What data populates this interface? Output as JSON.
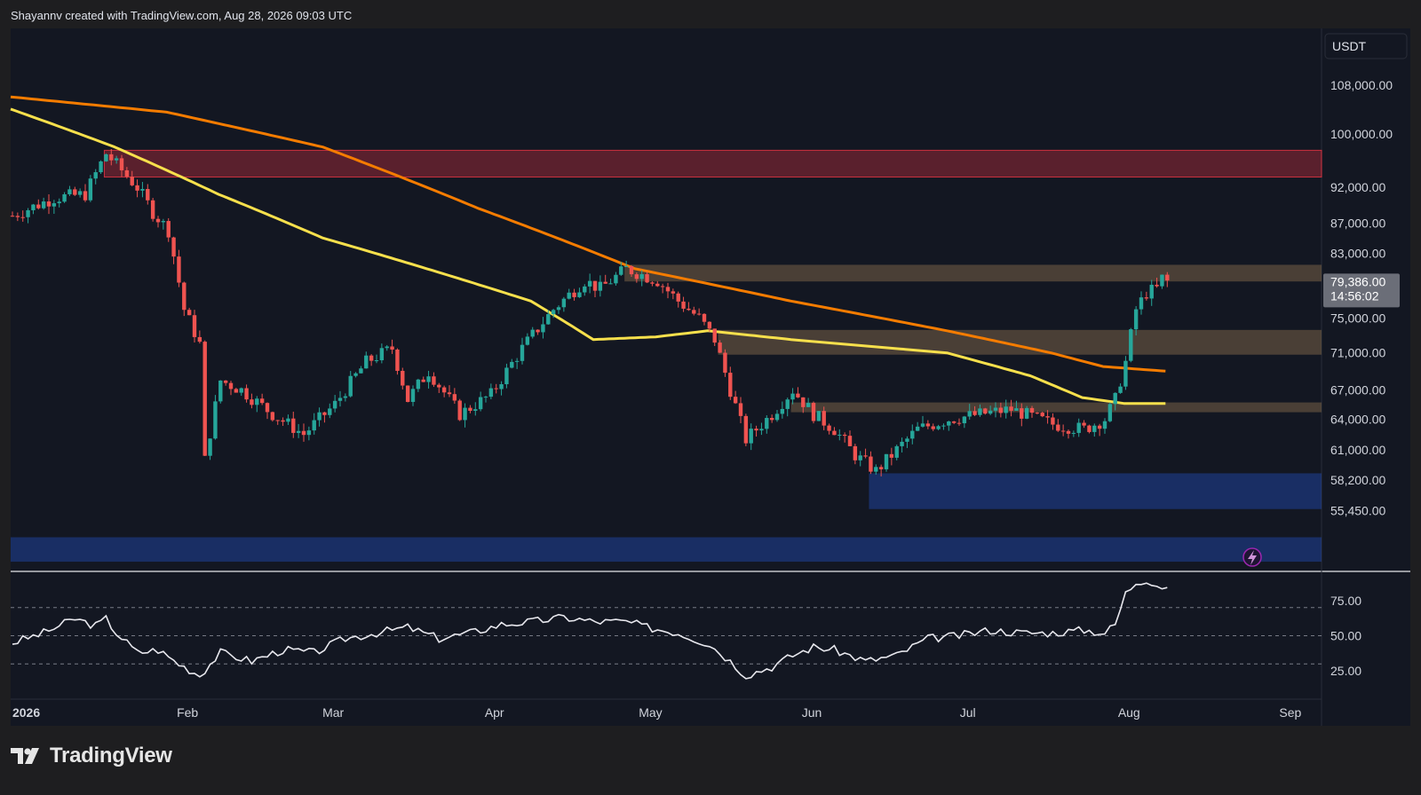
{
  "header": {
    "credit": "Shayannv created with TradingView.com, Aug 28, 2026 09:03 UTC"
  },
  "footer": {
    "brand": "TradingView"
  },
  "colors": {
    "bg": "#1e1e20",
    "pane": "#131722",
    "up": "#26a69a",
    "down": "#ef5350",
    "ma_orange": "#f57c00",
    "ma_yellow": "#f7e04c",
    "rsi": "#e8e8ee",
    "supply_red": "#f23645",
    "zone_tan": "#8d7150",
    "demand_blue": "#2962ff"
  },
  "chart_data": [
    {
      "type": "candlestick",
      "currency": "USDT",
      "y_ticks": [
        "108,000.00",
        "100,000.00",
        "92,000.00",
        "87,000.00",
        "83,000.00",
        "75,000.00",
        "71,000.00",
        "67,000.00",
        "64,000.00",
        "61,000.00",
        "58,200.00",
        "55,450.00"
      ],
      "y_tick_values": [
        108000,
        100000,
        92000,
        87000,
        83000,
        75000,
        71000,
        67000,
        64000,
        61000,
        58200,
        55450
      ],
      "x_ticks": [
        "2026",
        "Feb",
        "Mar",
        "Apr",
        "May",
        "Jun",
        "Jul",
        "Aug",
        "Sep"
      ],
      "last_price": "79,386.00",
      "countdown": "14:56:02",
      "price_path_start": "2025-12-29",
      "price_path": [
        [
          0,
          88000
        ],
        [
          8,
          90500
        ],
        [
          14,
          91000
        ],
        [
          18,
          97000
        ],
        [
          21,
          94500
        ],
        [
          24,
          92000
        ],
        [
          27,
          88500
        ],
        [
          30,
          86000
        ],
        [
          33,
          76000
        ],
        [
          36,
          72000
        ],
        [
          37,
          60000
        ],
        [
          40,
          68000
        ],
        [
          44,
          67000
        ],
        [
          50,
          64500
        ],
        [
          56,
          62500
        ],
        [
          62,
          65500
        ],
        [
          68,
          70000
        ],
        [
          73,
          71500
        ],
        [
          76,
          66000
        ],
        [
          80,
          69000
        ],
        [
          86,
          64500
        ],
        [
          92,
          66500
        ],
        [
          98,
          71500
        ],
        [
          104,
          76000
        ],
        [
          110,
          79500
        ],
        [
          113,
          78500
        ],
        [
          118,
          81000
        ],
        [
          124,
          79500
        ],
        [
          128,
          77000
        ],
        [
          132,
          75000
        ],
        [
          135,
          72500
        ],
        [
          138,
          67000
        ],
        [
          141,
          62000
        ],
        [
          146,
          64500
        ],
        [
          150,
          67000
        ],
        [
          154,
          64500
        ],
        [
          158,
          63000
        ],
        [
          162,
          60500
        ],
        [
          166,
          59000
        ],
        [
          170,
          61000
        ],
        [
          174,
          63000
        ],
        [
          180,
          64000
        ],
        [
          186,
          64500
        ],
        [
          192,
          65000
        ],
        [
          200,
          63500
        ],
        [
          206,
          63000
        ],
        [
          210,
          64000
        ],
        [
          212,
          66000
        ],
        [
          214,
          70000
        ],
        [
          216,
          76000
        ],
        [
          218,
          78000
        ],
        [
          220,
          78500
        ],
        [
          221,
          79800
        ],
        [
          222,
          79386
        ]
      ],
      "moving_averages": [
        {
          "color": "orange",
          "values": [
            [
              0,
              106000
            ],
            [
              30,
              103500
            ],
            [
              60,
              98000
            ],
            [
              90,
              89000
            ],
            [
              120,
              81000
            ],
            [
              150,
              77000
            ],
            [
              180,
              73500
            ],
            [
              200,
              71000
            ],
            [
              210,
              69500
            ],
            [
              222,
              69000
            ]
          ]
        },
        {
          "color": "yellow",
          "values": [
            [
              0,
              104000
            ],
            [
              20,
              98000
            ],
            [
              40,
              91000
            ],
            [
              60,
              85000
            ],
            [
              80,
              81000
            ],
            [
              100,
              77000
            ],
            [
              112,
              72500
            ],
            [
              124,
              72800
            ],
            [
              134,
              73500
            ],
            [
              150,
              72500
            ],
            [
              180,
              71000
            ],
            [
              196,
              68500
            ],
            [
              206,
              66200
            ],
            [
              214,
              65600
            ],
            [
              222,
              65600
            ]
          ]
        }
      ],
      "zones": [
        {
          "kind": "supply",
          "start_day": 18,
          "high": 97500,
          "low": 93500
        },
        {
          "kind": "resistance",
          "start_day": 118,
          "high": 81500,
          "low": 79400
        },
        {
          "kind": "resistance",
          "start_day": 136,
          "high": 73600,
          "low": 70800
        },
        {
          "kind": "resistance",
          "start_day": 150,
          "high": 65700,
          "low": 64700
        },
        {
          "kind": "demand",
          "start_day": 165,
          "high": 58800,
          "low": 55600
        },
        {
          "kind": "demand",
          "start_day": 0,
          "high": 53200,
          "low": 51200
        }
      ]
    },
    {
      "type": "line",
      "indicator": "RSI",
      "y_ticks": [
        "75.00",
        "50.00",
        "25.00"
      ],
      "y_tick_values": [
        75,
        50,
        25
      ],
      "levels": [
        70,
        50,
        30
      ],
      "values_path": [
        [
          0,
          45
        ],
        [
          6,
          52
        ],
        [
          12,
          62
        ],
        [
          16,
          57
        ],
        [
          18,
          62
        ],
        [
          20,
          52
        ],
        [
          24,
          38
        ],
        [
          28,
          40
        ],
        [
          32,
          30
        ],
        [
          36,
          22
        ],
        [
          40,
          38
        ],
        [
          46,
          32
        ],
        [
          52,
          40
        ],
        [
          58,
          38
        ],
        [
          64,
          48
        ],
        [
          70,
          52
        ],
        [
          76,
          56
        ],
        [
          82,
          48
        ],
        [
          88,
          52
        ],
        [
          94,
          58
        ],
        [
          100,
          60
        ],
        [
          106,
          63
        ],
        [
          112,
          60
        ],
        [
          118,
          60
        ],
        [
          122,
          56
        ],
        [
          128,
          52
        ],
        [
          134,
          44
        ],
        [
          138,
          32
        ],
        [
          141,
          22
        ],
        [
          146,
          28
        ],
        [
          150,
          36
        ],
        [
          154,
          42
        ],
        [
          158,
          40
        ],
        [
          164,
          32
        ],
        [
          170,
          36
        ],
        [
          176,
          48
        ],
        [
          182,
          50
        ],
        [
          188,
          54
        ],
        [
          194,
          52
        ],
        [
          200,
          52
        ],
        [
          206,
          54
        ],
        [
          210,
          52
        ],
        [
          212,
          58
        ],
        [
          214,
          80
        ],
        [
          216,
          88
        ],
        [
          218,
          90
        ],
        [
          220,
          86
        ],
        [
          222,
          84
        ]
      ]
    }
  ]
}
